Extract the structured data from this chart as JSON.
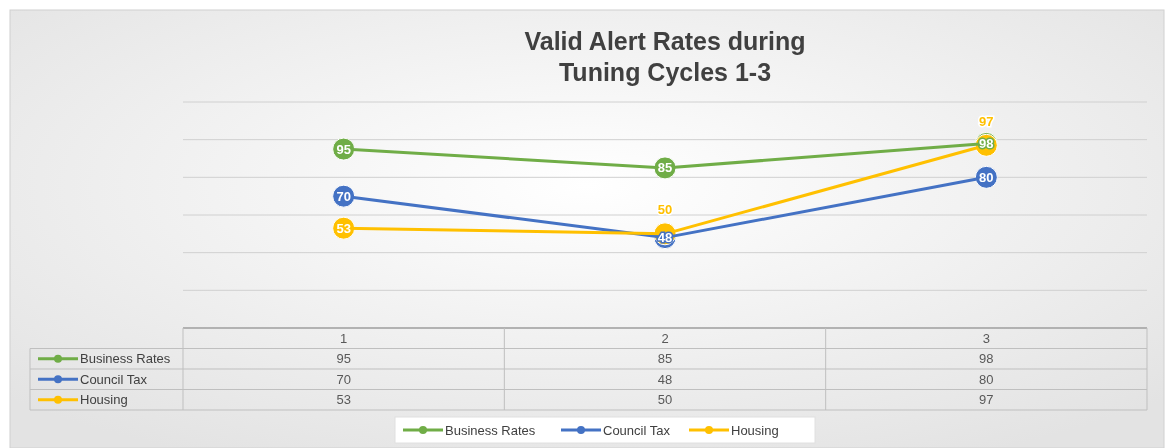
{
  "chart_data": {
    "type": "line",
    "title": "Valid Alert Rates during Tuning Cycles 1-3",
    "categories": [
      "1",
      "2",
      "3"
    ],
    "series": [
      {
        "name": "Business Rates",
        "color": "#70ad47",
        "values": [
          95,
          85,
          98
        ]
      },
      {
        "name": "Council Tax",
        "color": "#4472c4",
        "values": [
          70,
          48,
          80
        ]
      },
      {
        "name": "Housing",
        "color": "#ffc000",
        "values": [
          53,
          50,
          97
        ]
      }
    ],
    "annotations": [
      {
        "text": "95",
        "x": "1",
        "y": 95
      },
      {
        "text": "85",
        "x": "2",
        "y": 85
      },
      {
        "text": "98",
        "x": "3",
        "y": 98
      },
      {
        "text": "70",
        "x": "1",
        "y": 70
      },
      {
        "text": "48",
        "x": "2",
        "y": 48
      },
      {
        "text": "80",
        "x": "3",
        "y": 80
      },
      {
        "text": "53",
        "x": "1",
        "y": 53
      },
      {
        "text": "50",
        "x": "2",
        "y": 50
      },
      {
        "text": "97",
        "x": "3",
        "y": 97
      }
    ],
    "ylim": [
      0,
      120
    ],
    "yticks": [
      {
        "value": 0,
        "label": null
      },
      {
        "value": 20,
        "label": null
      },
      {
        "value": 40,
        "label": null
      },
      {
        "value": 60,
        "label": null
      },
      {
        "value": 80,
        "label": null
      },
      {
        "value": 100,
        "label": null
      },
      {
        "value": 120,
        "label": null
      }
    ],
    "grid": "y",
    "tick_labels": "x",
    "data_labels": true,
    "legend": "bottom",
    "marker": "circle",
    "line_style": "solid"
  }
}
